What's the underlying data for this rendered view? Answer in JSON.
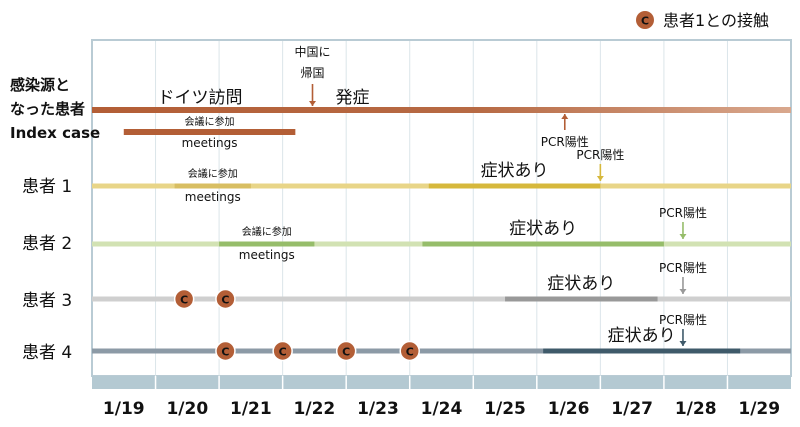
{
  "chart_data": {
    "type": "timeline",
    "legend": {
      "badge_letter": "C",
      "label": "患者1との接触",
      "position": "top-right"
    },
    "dates": [
      "1/19",
      "1/20",
      "1/21",
      "1/22",
      "1/23",
      "1/24",
      "1/25",
      "1/26",
      "1/27",
      "1/28",
      "1/29"
    ],
    "rows": [
      {
        "label_lines": [
          "感染源と",
          "なった患者",
          "Index case"
        ],
        "color": "#b35e36",
        "range": [
          18.5,
          29.5
        ],
        "segments": [],
        "annotations": [
          {
            "text": "ドイツ訪問",
            "x": 20.2,
            "size": "large"
          },
          {
            "text": "発症",
            "x": 22.6,
            "size": "large"
          }
        ],
        "arrows": [
          {
            "label_lines": [
              "中国に",
              "帰国"
            ],
            "x": 21.97,
            "direction": "down"
          },
          {
            "label_lines": [
              "PCR陽性"
            ],
            "x": 25.94,
            "direction": "up"
          }
        ],
        "sub_bar": {
          "range": [
            19.0,
            21.7
          ],
          "label_top": "会議に参加",
          "label_bottom": "meetings"
        },
        "contacts": []
      },
      {
        "label_lines": [
          "患者 1"
        ],
        "color": "#e8d588",
        "range": [
          18.5,
          29.5
        ],
        "segments": [
          {
            "range": [
              19.8,
              21.0
            ],
            "color": "#d8be62",
            "label_top": "会議に参加",
            "label_bottom": "meetings"
          },
          {
            "range": [
              23.8,
              26.5
            ],
            "color": "#d6b83c",
            "label_top": "症状あり"
          }
        ],
        "arrows": [
          {
            "label_lines": [
              "PCR陽性"
            ],
            "x": 26.5,
            "direction": "down"
          }
        ],
        "contacts": []
      },
      {
        "label_lines": [
          "患者 2"
        ],
        "color": "#d2e2b3",
        "range": [
          18.5,
          29.5
        ],
        "segments": [
          {
            "range": [
              20.5,
              22.0
            ],
            "color": "#96bd6a",
            "label_top": "会議に参加",
            "label_bottom": "meetings"
          },
          {
            "range": [
              23.7,
              27.5
            ],
            "color": "#96bd6a",
            "label_top": "症状あり"
          }
        ],
        "arrows": [
          {
            "label_lines": [
              "PCR陽性"
            ],
            "x": 27.8,
            "direction": "down"
          }
        ],
        "contacts": []
      },
      {
        "label_lines": [
          "患者 3"
        ],
        "color": "#cfcfcf",
        "range": [
          18.5,
          29.5
        ],
        "segments": [
          {
            "range": [
              25.0,
              27.4
            ],
            "color": "#999999",
            "label_top": "症状あり"
          }
        ],
        "arrows": [
          {
            "label_lines": [
              "PCR陽性"
            ],
            "x": 27.8,
            "direction": "down"
          }
        ],
        "contacts": [
          19.95,
          20.6
        ]
      },
      {
        "label_lines": [
          "患者 4"
        ],
        "color": "#8c9aa6",
        "range": [
          18.5,
          29.5
        ],
        "segments": [
          {
            "range": [
              25.6,
              28.7
            ],
            "color": "#3f5a6a",
            "label_top": "症状あり"
          }
        ],
        "arrows": [
          {
            "label_lines": [
              "PCR陽性"
            ],
            "x": 27.8,
            "direction": "down"
          }
        ],
        "contacts": [
          20.6,
          21.5,
          22.5,
          23.5
        ]
      }
    ]
  }
}
